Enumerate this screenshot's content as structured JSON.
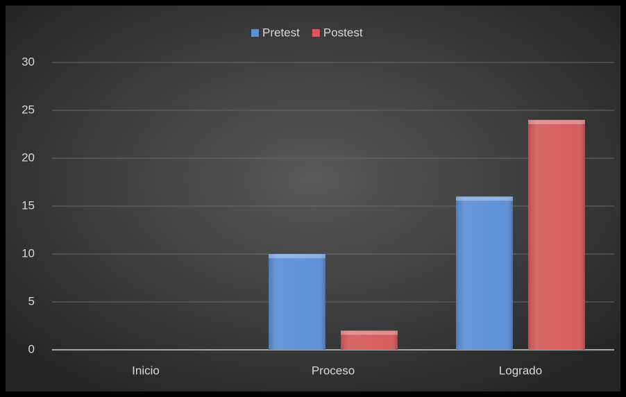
{
  "chart_data": {
    "type": "bar",
    "categories": [
      "Inicio",
      "Proceso",
      "Logrado"
    ],
    "series": [
      {
        "name": "Pretest",
        "color": "#5b8fd6",
        "values": [
          0,
          10,
          16
        ]
      },
      {
        "name": "Postest",
        "color": "#d65a5a",
        "values": [
          0,
          2,
          24
        ]
      }
    ],
    "ylim": [
      0,
      30
    ],
    "yticks": [
      0,
      5,
      10,
      15,
      20,
      25,
      30
    ],
    "grid": true,
    "legend": "top"
  }
}
